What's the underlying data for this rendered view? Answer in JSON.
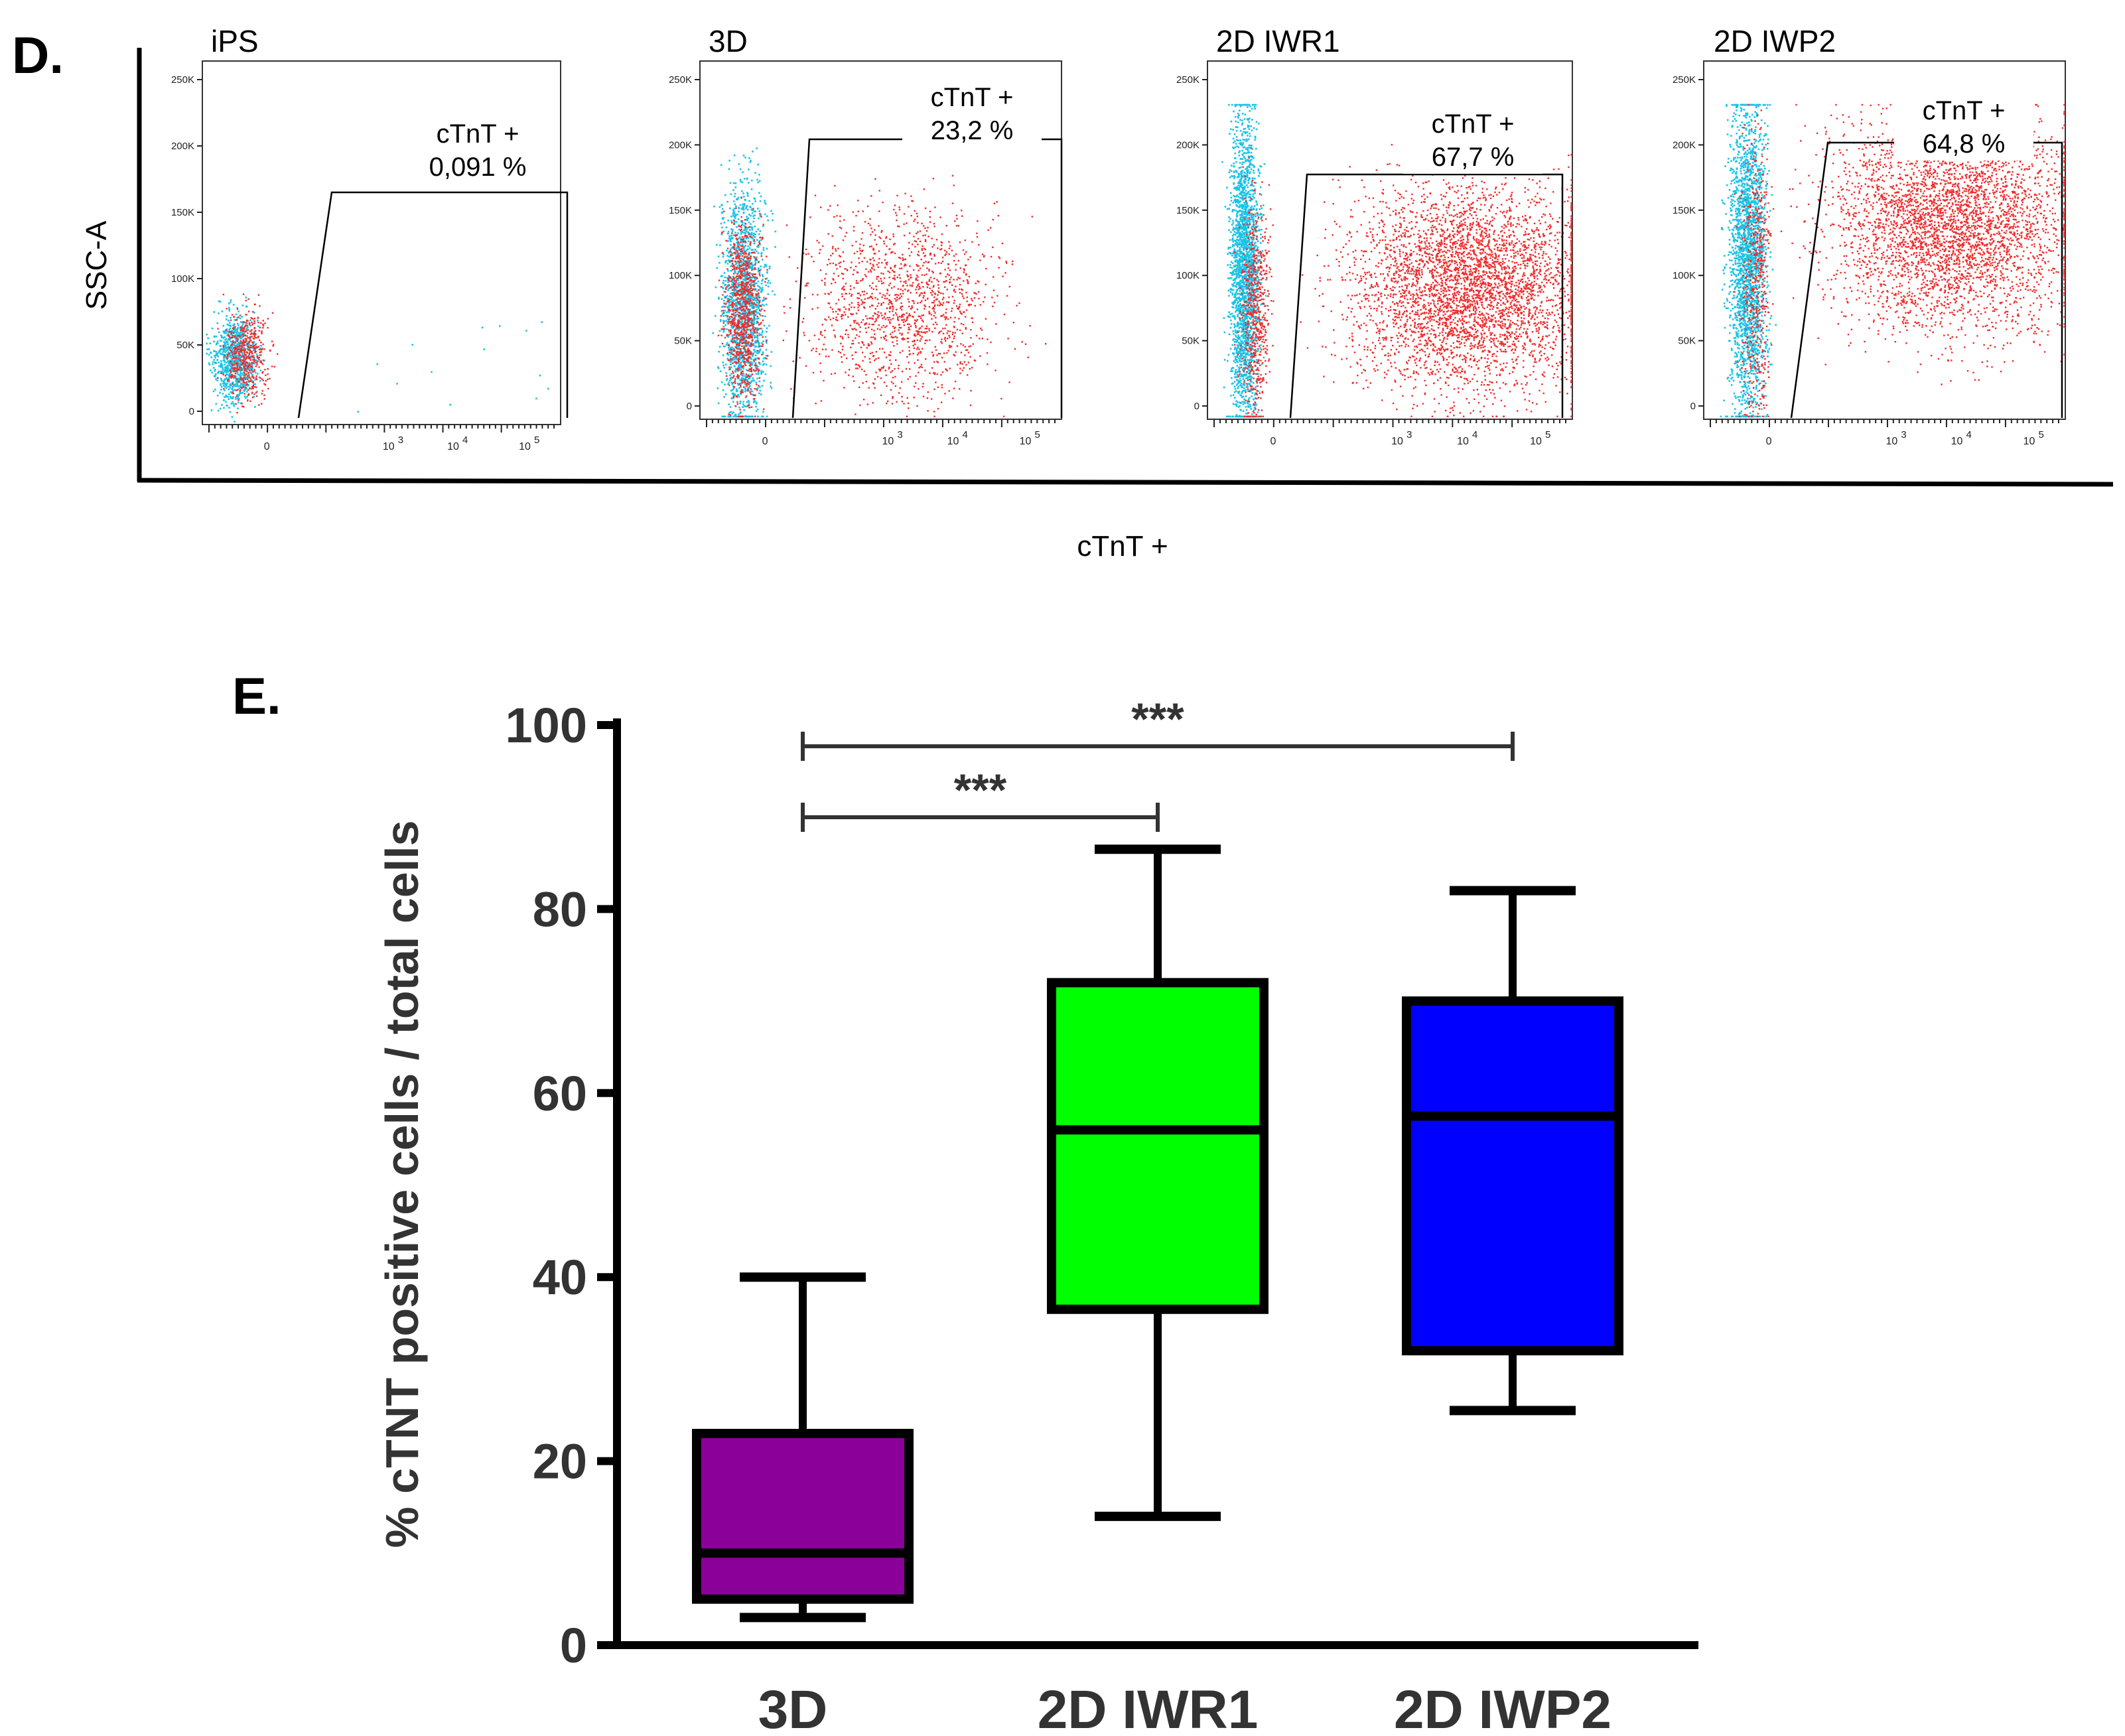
{
  "panels": {
    "d_label": "D.",
    "e_label": "E."
  },
  "flow": {
    "y_axis_label": "SSC-A",
    "x_axis_label": "cTnT +",
    "y_ticks": [
      "250K",
      "200K",
      "150K",
      "100K",
      "50K",
      "0"
    ],
    "x_decade_labels": [
      "0",
      "10",
      "10",
      "10"
    ],
    "colors": {
      "positive": "#ef2b2b",
      "negative": "#19c3e6"
    },
    "plots": [
      {
        "title": "iPS",
        "gate_label": "cTnT +",
        "gate_value": "0,091 %",
        "percent_positive": 0.091
      },
      {
        "title": "3D",
        "gate_label": "cTnT +",
        "gate_value": "23,2 %",
        "percent_positive": 23.2
      },
      {
        "title": "2D IWR1",
        "gate_label": "cTnT +",
        "gate_value": "67,7 %",
        "percent_positive": 67.7
      },
      {
        "title": "2D IWP2",
        "gate_label": "cTnT +",
        "gate_value": "64,8 %",
        "percent_positive": 64.8
      }
    ]
  },
  "chart_data": {
    "type": "box",
    "title": "",
    "xlabel": "",
    "ylabel": "% cTNT positive cells / total cells",
    "ylim": [
      0,
      100
    ],
    "yticks": [
      "0",
      "20",
      "40",
      "60",
      "80",
      "100"
    ],
    "categories": [
      "3D",
      "2D IWR1",
      "2D IWP2"
    ],
    "boxes": [
      {
        "name": "3D",
        "min": 3,
        "q1": 5,
        "median": 10,
        "q3": 23,
        "max": 40,
        "color": "#8b0099"
      },
      {
        "name": "2D IWR1",
        "min": 14,
        "q1": 36.5,
        "median": 56,
        "q3": 72,
        "max": 86.5,
        "color": "#00ff00"
      },
      {
        "name": "2D IWP2",
        "min": 25.5,
        "q1": 32,
        "median": 57.5,
        "q3": 70,
        "max": 82,
        "color": "#0000ff"
      }
    ],
    "significance": [
      {
        "from": "3D",
        "to": "2D IWR1",
        "label": "***"
      },
      {
        "from": "3D",
        "to": "2D IWP2",
        "label": "***"
      }
    ]
  }
}
